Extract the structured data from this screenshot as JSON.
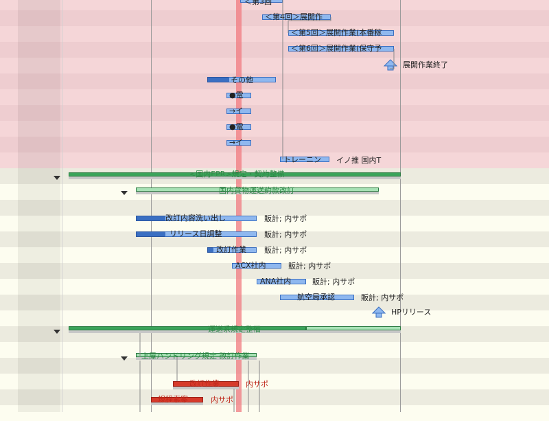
{
  "colors": {
    "row_pink_a": "#f5d6d8",
    "row_pink_b": "#eecdd0",
    "row_cream_a": "#fdfdf0",
    "row_cream_b": "#ecebdf",
    "today_line": "#f07a80",
    "task_blue": "#8fb8ef",
    "task_red": "#d63a2b",
    "group_green": "#3aa35a",
    "label_green": "#2f8a47",
    "label_red": "#c0281b"
  },
  "tasks": [
    {
      "label": "＜第3回",
      "resource": ""
    },
    {
      "label": "＜第4回＞展開作",
      "resource": ""
    },
    {
      "label": "＜第5回＞展開作業(本番稼",
      "resource": ""
    },
    {
      "label": "＜第6回＞展開作業(保守予",
      "resource": ""
    },
    {
      "label": "",
      "resource": "展開作業終了"
    },
    {
      "label": "その他",
      "resource": ""
    },
    {
      "label": "●電",
      "resource": ""
    },
    {
      "label": "→イ",
      "resource": ""
    },
    {
      "label": "●電",
      "resource": ""
    },
    {
      "label": "→イ",
      "resource": ""
    },
    {
      "label": "トレーニン",
      "resource": "イノ推 国内T"
    },
    {
      "label": "<国内EPR>規定・契約整備",
      "resource": ""
    },
    {
      "label": "国内貨物運送約款改訂",
      "resource": ""
    },
    {
      "label": "改訂内容洗い出し",
      "resource": "販計; 内サポ"
    },
    {
      "label": "リリース日調整",
      "resource": "販計; 内サポ"
    },
    {
      "label": "改訂作業",
      "resource": "販計; 内サポ"
    },
    {
      "label": "ACX社内",
      "resource": "販計; 内サポ"
    },
    {
      "label": "ANA社内",
      "resource": "販計; 内サポ"
    },
    {
      "label": "航空局承認",
      "resource": "販計; 内サポ"
    },
    {
      "label": "",
      "resource": "HPリリース"
    },
    {
      "label": "運送系規定整備",
      "resource": ""
    },
    {
      "label": "上屋ハンドリング規定 改訂作業",
      "resource": ""
    },
    {
      "label": "改訂作業",
      "resource": "内サポ"
    },
    {
      "label": "規程素案",
      "resource": "内サポ"
    }
  ]
}
